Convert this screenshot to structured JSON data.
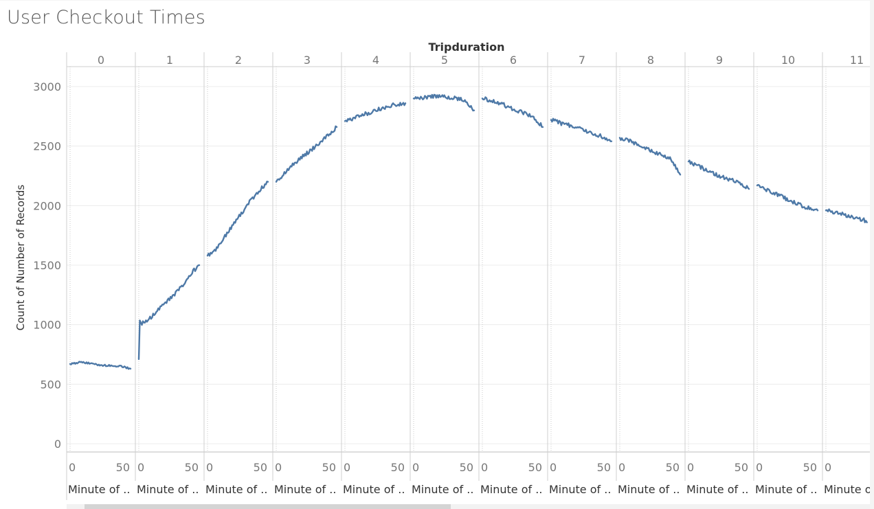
{
  "title": "User Checkout Times",
  "colors": {
    "line": "#4e79a7",
    "text": "#555555",
    "grid": "#ececec",
    "divider": "#cfcfcf"
  },
  "chart_data": {
    "type": "line",
    "title": "User Checkout Times",
    "column_header": "Tripduration",
    "panels": [
      "0",
      "1",
      "2",
      "3",
      "4",
      "5",
      "6",
      "7",
      "8",
      "9",
      "10",
      "11"
    ],
    "xlabel": "Minute of ..",
    "x_tick_labels": [
      "0",
      "50"
    ],
    "ylabel": "Count of Number of Records",
    "ylim": [
      0,
      3000
    ],
    "y_ticks": [
      0,
      500,
      1000,
      1500,
      2000,
      2500,
      3000
    ],
    "grid": true,
    "series": [
      {
        "panel": "0",
        "x": [
          0,
          10,
          20,
          30,
          40,
          50,
          59
        ],
        "y": [
          670,
          685,
          675,
          660,
          655,
          650,
          630
        ]
      },
      {
        "panel": "1",
        "x": [
          0,
          1,
          5,
          10,
          20,
          30,
          40,
          50,
          59
        ],
        "y": [
          710,
          1020,
          1010,
          1050,
          1130,
          1220,
          1300,
          1420,
          1500
        ]
      },
      {
        "panel": "2",
        "x": [
          0,
          10,
          20,
          30,
          40,
          50,
          59
        ],
        "y": [
          1580,
          1650,
          1780,
          1900,
          2020,
          2120,
          2200
        ]
      },
      {
        "panel": "3",
        "x": [
          0,
          10,
          20,
          30,
          40,
          50,
          59
        ],
        "y": [
          2200,
          2290,
          2370,
          2440,
          2510,
          2590,
          2660
        ]
      },
      {
        "panel": "4",
        "x": [
          0,
          10,
          20,
          30,
          40,
          50,
          59
        ],
        "y": [
          2710,
          2740,
          2770,
          2800,
          2830,
          2850,
          2860
        ]
      },
      {
        "panel": "5",
        "x": [
          0,
          10,
          20,
          30,
          40,
          50,
          59
        ],
        "y": [
          2900,
          2910,
          2920,
          2915,
          2905,
          2890,
          2800
        ]
      },
      {
        "panel": "6",
        "x": [
          0,
          10,
          20,
          30,
          40,
          50,
          59
        ],
        "y": [
          2900,
          2880,
          2850,
          2810,
          2780,
          2740,
          2660
        ]
      },
      {
        "panel": "7",
        "x": [
          0,
          10,
          20,
          30,
          40,
          50,
          59
        ],
        "y": [
          2720,
          2690,
          2670,
          2640,
          2610,
          2580,
          2540
        ]
      },
      {
        "panel": "8",
        "x": [
          0,
          10,
          20,
          30,
          40,
          50,
          59
        ],
        "y": [
          2570,
          2540,
          2500,
          2460,
          2430,
          2390,
          2260
        ]
      },
      {
        "panel": "9",
        "x": [
          0,
          10,
          20,
          30,
          40,
          50,
          59
        ],
        "y": [
          2370,
          2330,
          2290,
          2250,
          2220,
          2190,
          2140
        ]
      },
      {
        "panel": "10",
        "x": [
          0,
          10,
          20,
          30,
          40,
          50,
          59
        ],
        "y": [
          2170,
          2130,
          2090,
          2050,
          2010,
          1980,
          1960
        ]
      },
      {
        "panel": "11",
        "x": [
          0,
          10,
          20,
          30,
          40,
          50,
          59
        ],
        "y": [
          1960,
          1940,
          1920,
          1900,
          1870,
          1820,
          1790
        ]
      }
    ]
  }
}
